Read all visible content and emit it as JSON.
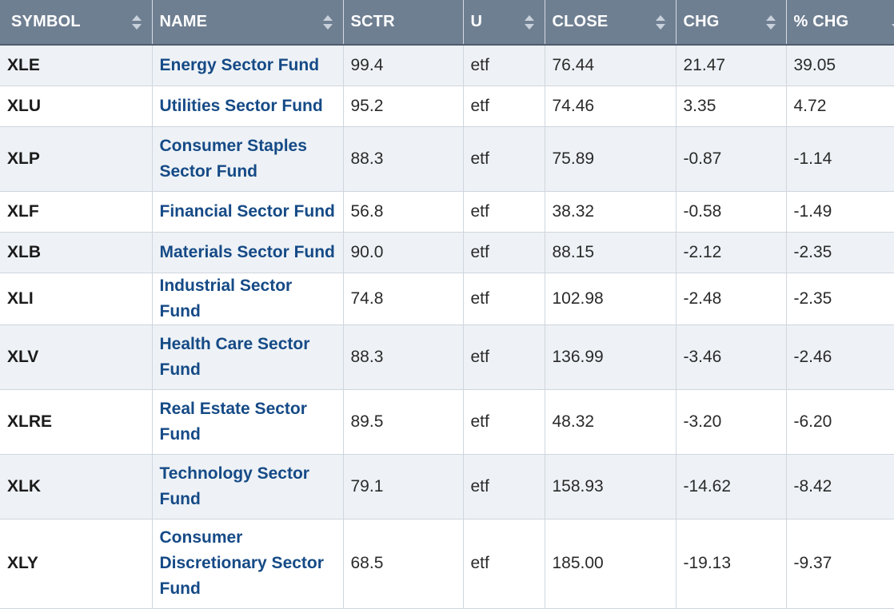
{
  "table": {
    "headers": [
      {
        "key": "symbol",
        "label": "SYMBOL",
        "sort": "both"
      },
      {
        "key": "name",
        "label": "NAME",
        "sort": "both"
      },
      {
        "key": "sctr",
        "label": "SCTR",
        "sort": "none"
      },
      {
        "key": "u",
        "label": "U",
        "sort": "both"
      },
      {
        "key": "close",
        "label": "CLOSE",
        "sort": "both"
      },
      {
        "key": "chg",
        "label": "CHG",
        "sort": "both"
      },
      {
        "key": "pct_chg",
        "label": "% CHG",
        "sort": "down"
      }
    ],
    "rows": [
      {
        "symbol": "XLE",
        "name": "Energy Sector Fund",
        "sctr": "99.4",
        "u": "etf",
        "close": "76.44",
        "chg": "21.47",
        "pct_chg": "39.05",
        "lines": 1
      },
      {
        "symbol": "XLU",
        "name": "Utilities Sector Fund",
        "sctr": "95.2",
        "u": "etf",
        "close": "74.46",
        "chg": "3.35",
        "pct_chg": "4.72",
        "lines": 1
      },
      {
        "symbol": "XLP",
        "name": "Consumer Staples Sector Fund",
        "sctr": "88.3",
        "u": "etf",
        "close": "75.89",
        "chg": "-0.87",
        "pct_chg": "-1.14",
        "lines": 2
      },
      {
        "symbol": "XLF",
        "name": "Financial Sector Fund",
        "sctr": "56.8",
        "u": "etf",
        "close": "38.32",
        "chg": "-0.58",
        "pct_chg": "-1.49",
        "lines": 1
      },
      {
        "symbol": "XLB",
        "name": "Materials Sector Fund",
        "sctr": "90.0",
        "u": "etf",
        "close": "88.15",
        "chg": "-2.12",
        "pct_chg": "-2.35",
        "lines": 1
      },
      {
        "symbol": "XLI",
        "name": "Industrial Sector Fund",
        "sctr": "74.8",
        "u": "etf",
        "close": "102.98",
        "chg": "-2.48",
        "pct_chg": "-2.35",
        "lines": 1
      },
      {
        "symbol": "XLV",
        "name": "Health Care Sector Fund",
        "sctr": "88.3",
        "u": "etf",
        "close": "136.99",
        "chg": "-3.46",
        "pct_chg": "-2.46",
        "lines": 2
      },
      {
        "symbol": "XLRE",
        "name": "Real Estate Sector Fund",
        "sctr": "89.5",
        "u": "etf",
        "close": "48.32",
        "chg": "-3.20",
        "pct_chg": "-6.20",
        "lines": 2
      },
      {
        "symbol": "XLK",
        "name": "Technology Sector Fund",
        "sctr": "79.1",
        "u": "etf",
        "close": "158.93",
        "chg": "-14.62",
        "pct_chg": "-8.42",
        "lines": 2
      },
      {
        "symbol": "XLY",
        "name": "Consumer Discretionary Sector Fund",
        "sctr": "68.5",
        "u": "etf",
        "close": "185.00",
        "chg": "-19.13",
        "pct_chg": "-9.37",
        "lines": 3
      }
    ]
  },
  "colors": {
    "header_bg": "#6f7f92",
    "link": "#154a86",
    "row_alt": "#eef2f6"
  }
}
